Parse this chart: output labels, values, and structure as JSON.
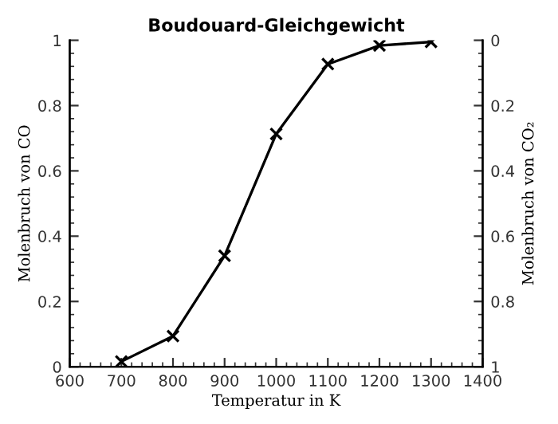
{
  "chart_data": {
    "type": "line",
    "title": "Boudouard-Gleichgewicht",
    "xlabel": "Temperatur in K",
    "ylabel": "Molenbruch von CO",
    "y2label": "Molenbruch von CO₂",
    "x": [
      700,
      800,
      900,
      1000,
      1100,
      1200,
      1300
    ],
    "series": [
      {
        "color": "#000000",
        "values": [
          0.016,
          0.094,
          0.34,
          0.713,
          0.927,
          0.984,
          0.995
        ]
      }
    ],
    "marker": "cross",
    "line_style": "solid",
    "grid": false,
    "legend": false,
    "xlim": [
      600,
      1400
    ],
    "xticks": [
      600,
      700,
      800,
      900,
      1000,
      1100,
      1200,
      1300,
      1400
    ],
    "ylim": [
      0,
      1
    ],
    "yticks": [
      0,
      0.2,
      0.4,
      0.6,
      0.8,
      1
    ],
    "y2lim": [
      1,
      0
    ],
    "y2ticks": [
      0,
      0.2,
      0.4,
      0.6,
      0.8,
      1
    ]
  }
}
